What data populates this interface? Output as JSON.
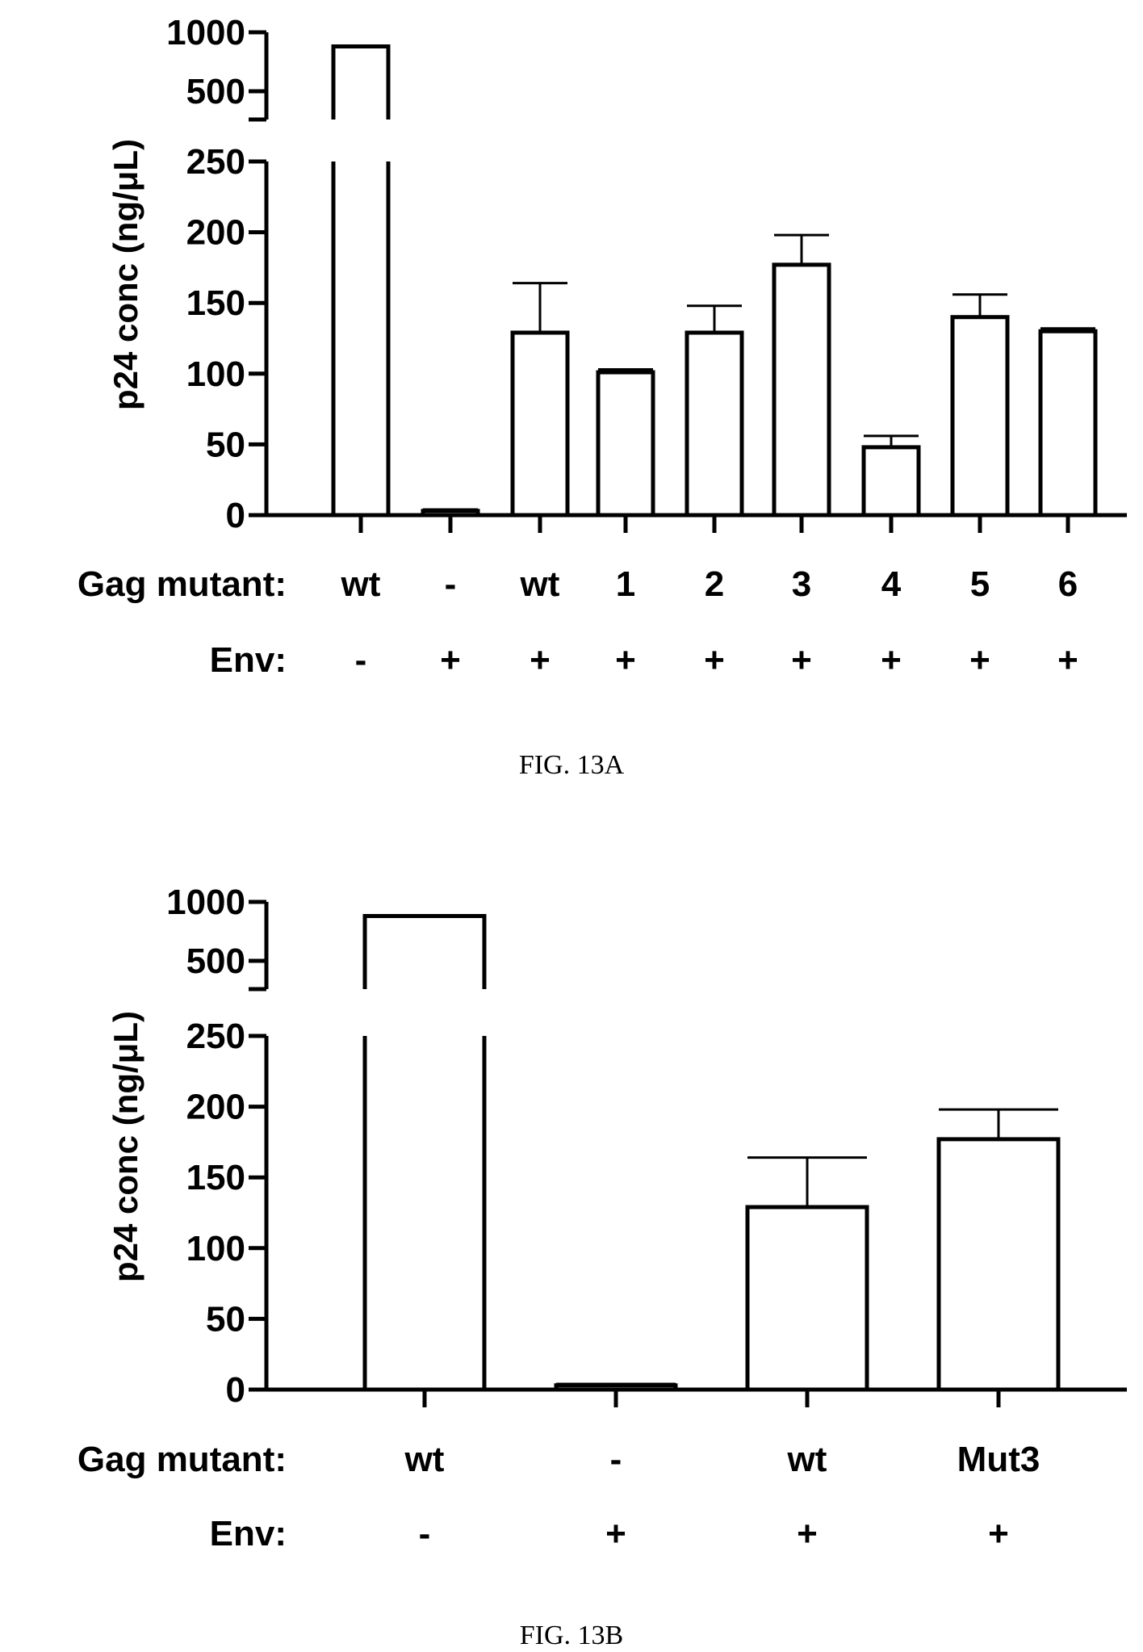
{
  "chart_data": [
    {
      "type": "bar",
      "caption": "FIG. 13A",
      "ylabel": "p24 conc (ng/μL)",
      "y_axis": {
        "broken": true,
        "lower_range": [
          0,
          250
        ],
        "upper_range": [
          500,
          1000
        ],
        "lower_ticks": [
          "0",
          "50",
          "100",
          "150",
          "200",
          "250"
        ],
        "upper_ticks": [
          "500",
          "1000"
        ]
      },
      "row_labels": {
        "gag": "Gag mutant:",
        "env": "Env:"
      },
      "categories": [
        "wt",
        "-",
        "wt",
        "1",
        "2",
        "3",
        "4",
        "5",
        "6"
      ],
      "env": [
        "-",
        "+",
        "+",
        "+",
        "+",
        "+",
        "+",
        "+",
        "+"
      ],
      "values": [
        880,
        3,
        129,
        101,
        129,
        177,
        48,
        140,
        130
      ],
      "errors": [
        5,
        1,
        35,
        2,
        19,
        21,
        8,
        16,
        2
      ]
    },
    {
      "type": "bar",
      "caption": "FIG. 13B",
      "ylabel": "p24 conc (ng/μL)",
      "y_axis": {
        "broken": true,
        "lower_range": [
          0,
          250
        ],
        "upper_range": [
          500,
          1000
        ],
        "lower_ticks": [
          "0",
          "50",
          "100",
          "150",
          "200",
          "250"
        ],
        "upper_ticks": [
          "500",
          "1000"
        ]
      },
      "row_labels": {
        "gag": "Gag mutant:",
        "env": "Env:"
      },
      "categories": [
        "wt",
        "-",
        "wt",
        "Mut3"
      ],
      "env": [
        "-",
        "+",
        "+",
        "+"
      ],
      "values": [
        880,
        3,
        129,
        177
      ],
      "errors": [
        5,
        1,
        35,
        21
      ]
    }
  ]
}
